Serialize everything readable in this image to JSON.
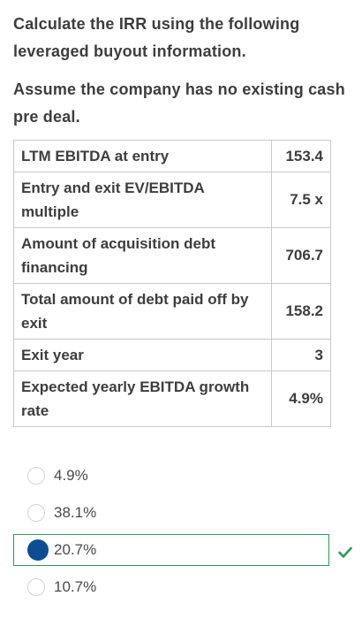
{
  "question": {
    "line1": "Calculate the IRR using the following leveraged buyout information.",
    "line2": "Assume the company has no existing cash pre deal."
  },
  "table": {
    "rows": [
      {
        "label": "LTM EBITDA at entry",
        "value": "153.4"
      },
      {
        "label": "Entry and exit EV/EBITDA multiple",
        "value": "7.5 x"
      },
      {
        "label": "Amount of acquisition debt financing",
        "value": "706.7"
      },
      {
        "label": "Total amount of debt paid off by exit",
        "value": "158.2"
      },
      {
        "label": "Exit year",
        "value": "3"
      },
      {
        "label": "Expected yearly EBITDA growth rate",
        "value": "4.9%"
      }
    ]
  },
  "options": [
    {
      "label": "4.9%",
      "selected": false
    },
    {
      "label": "38.1%",
      "selected": false
    },
    {
      "label": "20.7%",
      "selected": true,
      "correct": true
    },
    {
      "label": "10.7%",
      "selected": false
    }
  ],
  "colors": {
    "selected_fill": "#0d4e93",
    "correct_border": "#2e9a5a",
    "check": "#2e9a5a"
  },
  "icons": {
    "correct": "check-icon"
  }
}
